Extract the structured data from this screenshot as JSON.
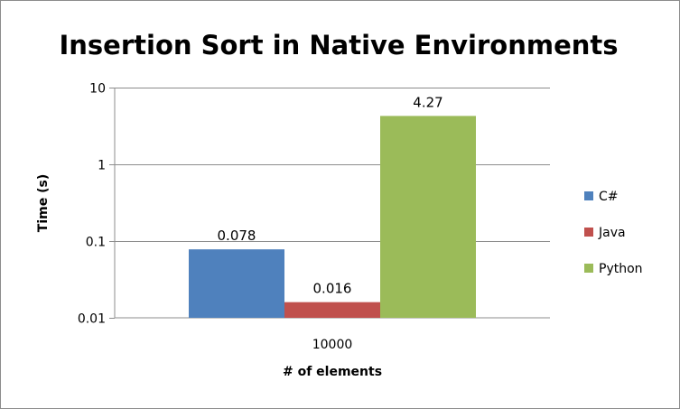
{
  "chart_data": {
    "type": "bar",
    "title": "Insertion Sort in Native Environments",
    "xlabel": "# of elements",
    "ylabel": "Time (s)",
    "yscale": "log",
    "ylim": [
      0.01,
      10
    ],
    "yticks": [
      "0.01",
      "0.1",
      "1",
      "10"
    ],
    "grid": true,
    "legend_position": "right",
    "categories": [
      "10000"
    ],
    "series": [
      {
        "name": "C#",
        "values": [
          0.078
        ],
        "label": "0.078",
        "color": "#4f81bd"
      },
      {
        "name": "Java",
        "values": [
          0.016
        ],
        "label": "0.016",
        "color": "#c0504d"
      },
      {
        "name": "Python",
        "values": [
          4.27
        ],
        "label": "4.27",
        "color": "#9bbb59"
      }
    ]
  }
}
